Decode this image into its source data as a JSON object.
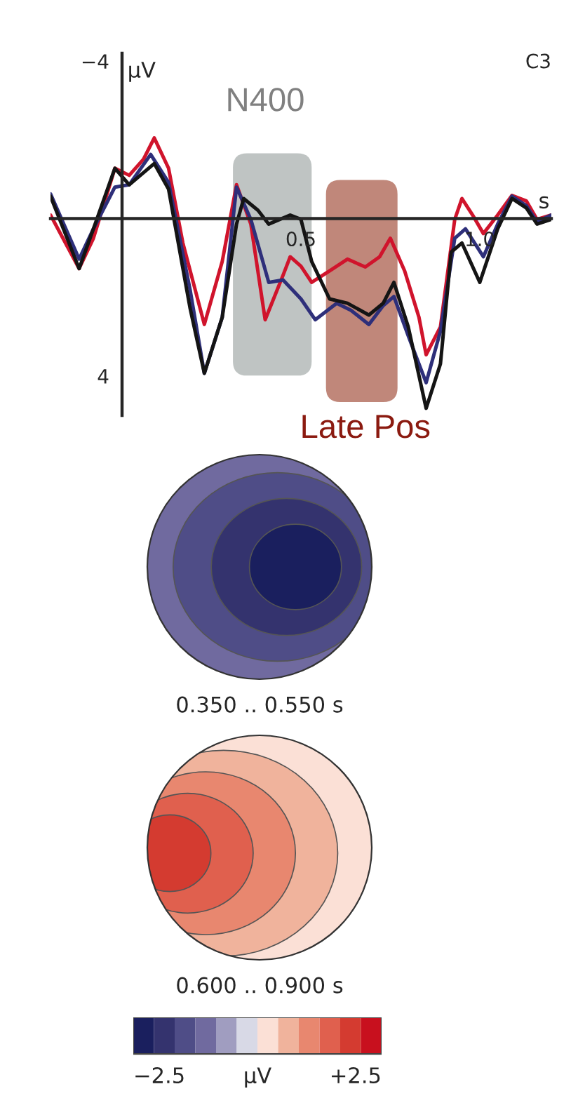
{
  "chart_data": [
    {
      "type": "line",
      "xlim": [
        -0.2,
        1.2
      ],
      "ylim": [
        5,
        -4.2
      ],
      "xticks": [
        0.5,
        {
          "value": 1,
          "label": "1.0"
        }
      ],
      "yticks": [
        {
          "value": -4,
          "label": "−4"
        },
        4
      ],
      "ylabel": "µV",
      "xlabel": "s",
      "grid": false,
      "annotations": [
        "C3"
      ],
      "bands": [
        {
          "axis": "x",
          "from": 0.31,
          "to": 0.53,
          "label": "N400",
          "color": "#bfc4c3"
        },
        {
          "axis": "x",
          "from": 0.57,
          "to": 0.77,
          "label": "Late Pos",
          "color": "#c0877a"
        }
      ],
      "series": [
        {
          "color": "#d0142c",
          "x": [
            -0.2,
            -0.12,
            -0.08,
            -0.02,
            0.02,
            0.06,
            0.09,
            0.13,
            0.17,
            0.23,
            0.28,
            0.32,
            0.36,
            0.4,
            0.45,
            0.47,
            0.5,
            0.53,
            0.58,
            0.63,
            0.68,
            0.72,
            0.75,
            0.79,
            0.83,
            0.85,
            0.89,
            0.93,
            0.95,
            0.98,
            1.01,
            1.05,
            1.09,
            1.13,
            1.16,
            1.2
          ],
          "values": [
            -0.09,
            1.27,
            0.5,
            -1.28,
            -1.1,
            -1.51,
            -2.05,
            -1.28,
            0.62,
            2.69,
            1.09,
            -0.86,
            0.14,
            2.57,
            1.44,
            0.97,
            1.21,
            1.62,
            1.33,
            1.03,
            1.23,
            0.97,
            0.5,
            1.33,
            2.51,
            3.46,
            2.75,
            0.02,
            -0.51,
            -0.09,
            0.38,
            -0.09,
            -0.59,
            -0.45,
            0.02,
            -0.09
          ]
        },
        {
          "color": "#2e2f7a",
          "x": [
            -0.2,
            -0.12,
            -0.08,
            -0.02,
            0.02,
            0.08,
            0.13,
            0.19,
            0.23,
            0.28,
            0.32,
            0.36,
            0.41,
            0.45,
            0.5,
            0.54,
            0.6,
            0.64,
            0.69,
            0.73,
            0.76,
            0.8,
            0.85,
            0.89,
            0.93,
            0.96,
            1.01,
            1.05,
            1.09,
            1.13,
            1.16,
            1.2
          ],
          "values": [
            -0.63,
            1.03,
            0.26,
            -0.8,
            -0.86,
            -1.63,
            -0.92,
            1.8,
            3.93,
            2.51,
            -0.8,
            0.02,
            1.62,
            1.56,
            2.04,
            2.57,
            2.15,
            2.33,
            2.69,
            2.21,
            1.98,
            2.98,
            4.17,
            2.86,
            0.5,
            0.26,
            0.97,
            0.14,
            -0.57,
            -0.33,
            0.08,
            -0.09
          ]
        },
        {
          "color": "#141414",
          "x": [
            -0.2,
            -0.12,
            -0.08,
            -0.02,
            0.02,
            0.09,
            0.13,
            0.19,
            0.23,
            0.28,
            0.32,
            0.34,
            0.38,
            0.41,
            0.47,
            0.5,
            0.53,
            0.58,
            0.63,
            0.69,
            0.73,
            0.76,
            0.8,
            0.85,
            0.89,
            0.92,
            0.95,
            1.0,
            1.05,
            1.09,
            1.13,
            1.16,
            1.2
          ],
          "values": [
            -0.57,
            1.27,
            0.26,
            -1.28,
            -0.86,
            -1.4,
            -0.75,
            2.27,
            3.93,
            2.51,
            0.14,
            -0.51,
            -0.21,
            0.14,
            -0.09,
            0.02,
            1.09,
            2.04,
            2.15,
            2.45,
            2.15,
            1.62,
            2.75,
            4.82,
            3.69,
            0.85,
            0.62,
            1.62,
            0.26,
            -0.51,
            -0.27,
            0.14,
            0.02
          ]
        }
      ]
    },
    {
      "type": "other",
      "title": "0.350 .. 0.550 s",
      "colors": [
        "#a09dc0",
        "#706a9f",
        "#4f4d87",
        "#34336e",
        "#1a1f5e"
      ]
    },
    {
      "type": "other",
      "title": "0.600 .. 0.900 s",
      "colors": [
        "#d8d9e6",
        "#fbe0d6",
        "#f0b39c",
        "#e8876f",
        "#e0604e",
        "#d43b30"
      ]
    },
    {
      "type": "other",
      "colors": [
        "#1a1f5e",
        "#34336e",
        "#4f4d87",
        "#706a9f",
        "#a09dc0",
        "#d8d9e6",
        "#fbe0d6",
        "#f0b39c",
        "#e8876f",
        "#e0604e",
        "#d43b30",
        "#c8101e"
      ],
      "annotations": [
        "−2.5",
        "µV",
        "+2.5"
      ]
    }
  ]
}
